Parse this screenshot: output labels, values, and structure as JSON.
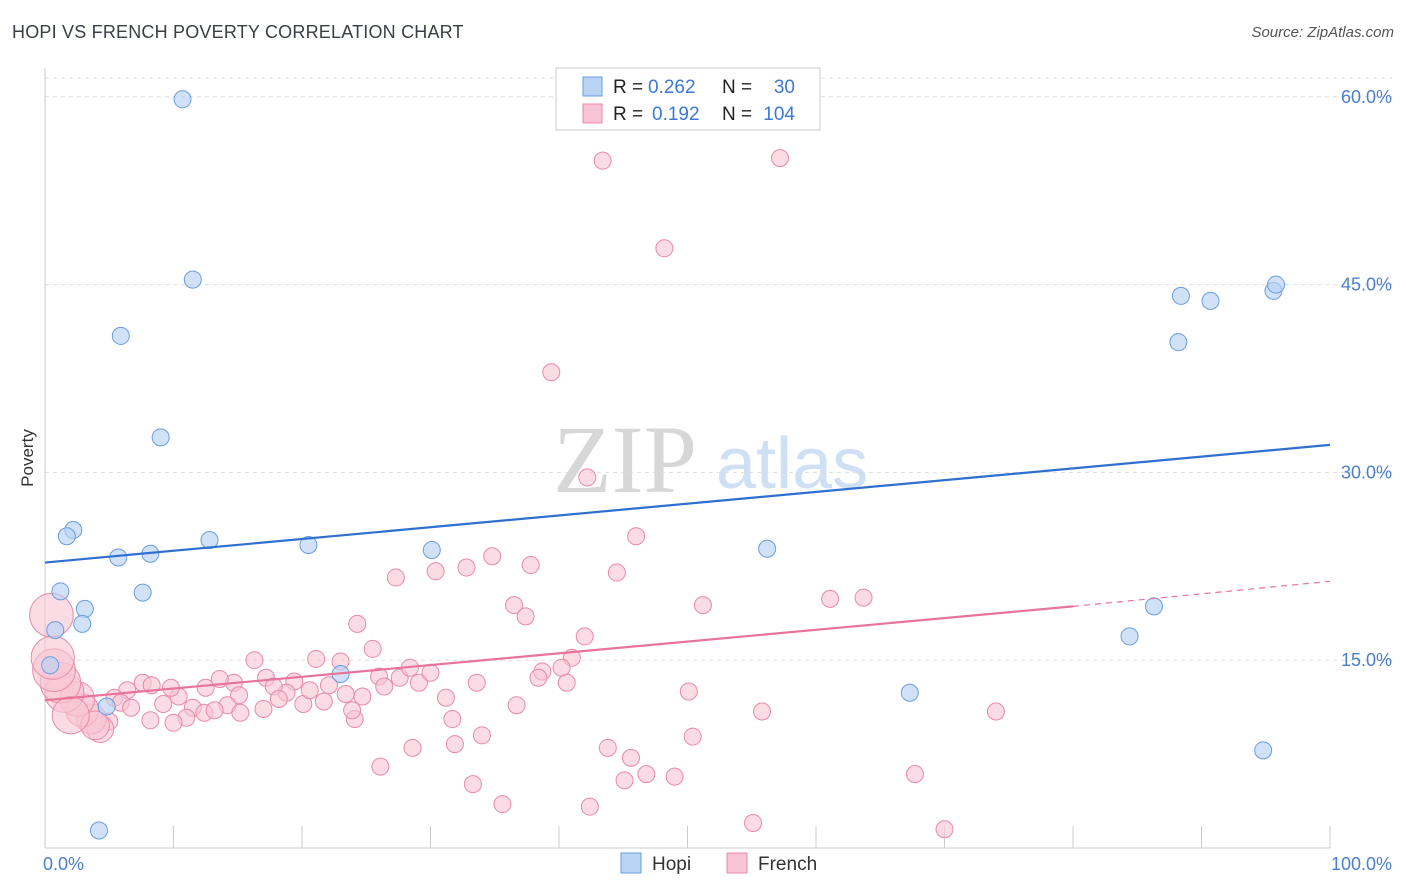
{
  "title": "HOPI VS FRENCH POVERTY CORRELATION CHART",
  "source": "Source: ZipAtlas.com",
  "watermark": {
    "zip": "ZIP",
    "atlas": "atlas"
  },
  "colors": {
    "hopi_fill": "#b9d3f5",
    "hopi_stroke": "#6a9de0",
    "hopi_line": "#2f6fd0",
    "french_fill": "#f8c4d3",
    "french_stroke": "#e98aa8",
    "french_line": "#e8739b",
    "grid": "#dddddd",
    "label": "#4a7fd0"
  },
  "legend": {
    "rows": [
      {
        "r_label": "R = ",
        "r_value": "0.262",
        "n_label": "N = ",
        "n_value": "30"
      },
      {
        "r_label": "R = ",
        "r_value": "0.192",
        "n_label": "N = ",
        "n_value": "104"
      }
    ]
  },
  "bottom_legend": [
    "Hopi",
    "French"
  ],
  "chart_data": {
    "type": "scatter",
    "title": "HOPI VS FRENCH POVERTY CORRELATION CHART",
    "xlabel": "",
    "ylabel": "Poverty",
    "xlim": [
      0,
      100
    ],
    "ylim": [
      0,
      61.5
    ],
    "x_tick_labels": [
      "0.0%",
      "100.0%"
    ],
    "y_ticks": [
      15,
      30,
      45,
      60
    ],
    "y_tick_labels": [
      "15.0%",
      "30.0%",
      "45.0%",
      "60.0%"
    ],
    "grid": true,
    "legend_position": "top-center",
    "series": [
      {
        "name": "Hopi",
        "r": 0.262,
        "n": 30,
        "trend": {
          "x0": 0,
          "y0": 22.8,
          "x1": 100,
          "y1": 32.2
        },
        "points": [
          [
            10.7,
            59.8
          ],
          [
            11.5,
            45.4
          ],
          [
            5.9,
            40.9
          ],
          [
            9.0,
            32.8
          ],
          [
            2.2,
            25.4
          ],
          [
            1.7,
            24.9
          ],
          [
            12.8,
            24.6
          ],
          [
            20.5,
            24.2
          ],
          [
            8.2,
            23.5
          ],
          [
            5.7,
            23.2
          ],
          [
            30.1,
            23.8
          ],
          [
            56.2,
            23.9
          ],
          [
            1.2,
            20.5
          ],
          [
            7.6,
            20.4
          ],
          [
            3.1,
            19.1
          ],
          [
            2.9,
            17.9
          ],
          [
            0.8,
            17.4
          ],
          [
            0.4,
            14.6
          ],
          [
            23.0,
            13.9
          ],
          [
            4.8,
            11.3
          ],
          [
            67.3,
            12.4
          ],
          [
            88.4,
            44.1
          ],
          [
            90.7,
            43.7
          ],
          [
            95.6,
            44.5
          ],
          [
            95.8,
            45.0
          ],
          [
            88.2,
            40.4
          ],
          [
            86.3,
            19.3
          ],
          [
            84.4,
            16.9
          ],
          [
            94.8,
            7.8
          ],
          [
            4.2,
            1.4
          ]
        ]
      },
      {
        "name": "French",
        "r": 0.192,
        "n": 104,
        "trend": {
          "x0": 0,
          "y0": 11.8,
          "x1": 80,
          "y1": 19.3
        },
        "trend_dashed": {
          "x0": 80,
          "y0": 19.3,
          "x1": 100,
          "y1": 21.3
        },
        "points": [
          [
            43.4,
            54.9
          ],
          [
            57.2,
            55.1
          ],
          [
            48.2,
            47.9
          ],
          [
            39.4,
            38.0
          ],
          [
            42.2,
            29.6
          ],
          [
            46.0,
            24.9
          ],
          [
            34.8,
            23.3
          ],
          [
            37.8,
            22.6
          ],
          [
            30.4,
            22.1
          ],
          [
            32.8,
            22.4
          ],
          [
            44.5,
            22.0
          ],
          [
            27.3,
            21.6
          ],
          [
            36.5,
            19.4
          ],
          [
            37.4,
            18.5
          ],
          [
            51.2,
            19.4
          ],
          [
            61.1,
            19.9
          ],
          [
            24.3,
            17.9
          ],
          [
            25.5,
            15.9
          ],
          [
            42.0,
            16.9
          ],
          [
            41.0,
            15.2
          ],
          [
            38.7,
            14.1
          ],
          [
            40.2,
            14.4
          ],
          [
            38.4,
            13.6
          ],
          [
            40.6,
            13.2
          ],
          [
            27.6,
            13.6
          ],
          [
            26.0,
            13.7
          ],
          [
            28.4,
            14.4
          ],
          [
            29.1,
            13.2
          ],
          [
            21.1,
            15.1
          ],
          [
            23.0,
            14.9
          ],
          [
            16.3,
            15.0
          ],
          [
            17.2,
            13.6
          ],
          [
            19.4,
            13.3
          ],
          [
            22.1,
            13.0
          ],
          [
            23.4,
            12.3
          ],
          [
            20.1,
            11.5
          ],
          [
            18.8,
            12.4
          ],
          [
            24.7,
            12.1
          ],
          [
            17.0,
            11.1
          ],
          [
            14.7,
            13.2
          ],
          [
            15.1,
            12.2
          ],
          [
            12.5,
            12.8
          ],
          [
            13.6,
            13.5
          ],
          [
            14.2,
            11.4
          ],
          [
            10.4,
            12.1
          ],
          [
            9.2,
            11.5
          ],
          [
            7.6,
            13.2
          ],
          [
            8.3,
            13.0
          ],
          [
            6.4,
            12.6
          ],
          [
            5.4,
            12.0
          ],
          [
            5.9,
            11.6
          ],
          [
            6.7,
            11.2
          ],
          [
            11.5,
            11.2
          ],
          [
            12.4,
            10.8
          ],
          [
            11.0,
            10.4
          ],
          [
            10.0,
            10.0
          ],
          [
            15.2,
            10.8
          ],
          [
            24.1,
            10.3
          ],
          [
            23.9,
            11.0
          ],
          [
            31.2,
            12.0
          ],
          [
            31.7,
            10.3
          ],
          [
            33.6,
            13.2
          ],
          [
            34.0,
            9.0
          ],
          [
            36.7,
            11.4
          ],
          [
            31.9,
            8.3
          ],
          [
            28.6,
            8.0
          ],
          [
            26.1,
            6.5
          ],
          [
            33.3,
            5.1
          ],
          [
            35.6,
            3.5
          ],
          [
            42.4,
            3.3
          ],
          [
            45.1,
            5.4
          ],
          [
            46.8,
            5.9
          ],
          [
            49.0,
            5.7
          ],
          [
            45.6,
            7.2
          ],
          [
            43.8,
            8.0
          ],
          [
            50.4,
            8.9
          ],
          [
            50.1,
            12.5
          ],
          [
            55.8,
            10.9
          ],
          [
            55.1,
            2.0
          ],
          [
            67.7,
            5.9
          ],
          [
            70.0,
            1.5
          ],
          [
            74.0,
            10.9
          ],
          [
            63.7,
            20.0
          ],
          [
            5.0,
            10.1
          ],
          [
            4.3,
            9.5
          ],
          [
            3.6,
            10.3
          ],
          [
            2.9,
            11.0
          ],
          [
            2.5,
            11.9
          ],
          [
            1.5,
            12.4
          ],
          [
            1.2,
            13.2
          ],
          [
            0.7,
            14.2
          ],
          [
            0.6,
            15.2
          ],
          [
            0.5,
            18.6
          ],
          [
            3.9,
            9.8
          ],
          [
            2.0,
            10.6
          ],
          [
            8.2,
            10.2
          ],
          [
            9.8,
            12.8
          ],
          [
            13.2,
            11.0
          ],
          [
            17.8,
            12.9
          ],
          [
            18.2,
            11.9
          ],
          [
            20.6,
            12.6
          ],
          [
            21.7,
            11.7
          ],
          [
            26.4,
            12.9
          ],
          [
            30.0,
            14.0
          ]
        ]
      }
    ]
  }
}
